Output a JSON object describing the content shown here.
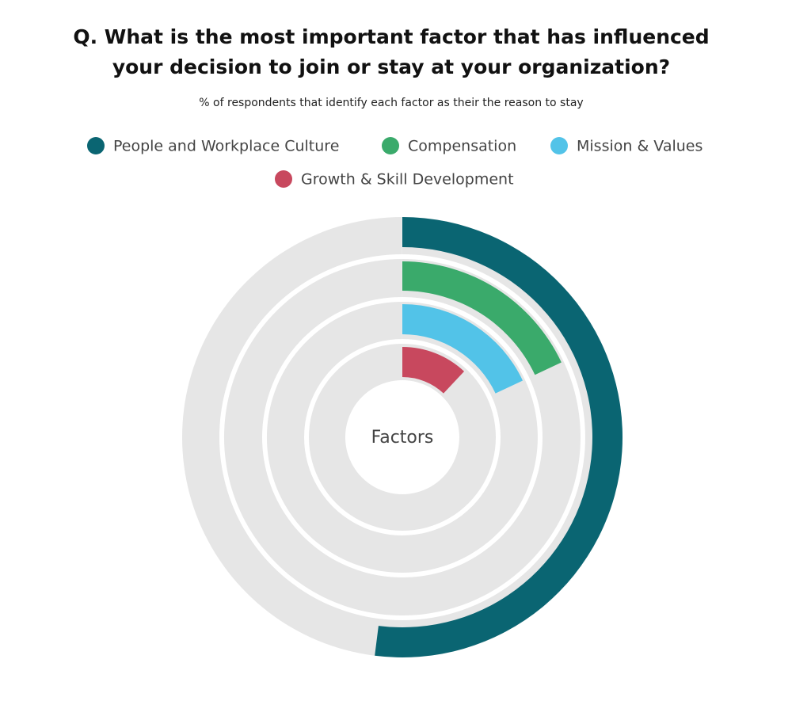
{
  "chart_data": {
    "type": "radial-bar",
    "title": [
      "Q. What is the most important factor that has influenced",
      "your decision to join or stay at your organization?"
    ],
    "subtitle": "% of respondents that identify each factor  as their the reason to stay",
    "center_label": "Factors",
    "ylim": [
      0,
      100
    ],
    "track_color": "#e6e6e6",
    "series": [
      {
        "name": "People and Workplace Culture",
        "color": "#0a6572",
        "values": [
          52
        ]
      },
      {
        "name": "Compensation",
        "color": "#3aaa6b",
        "values": [
          18
        ]
      },
      {
        "name": "Mission & Values",
        "color": "#52c3e8",
        "values": [
          18
        ]
      },
      {
        "name": "Growth & Skill Development",
        "color": "#c8485e",
        "values": [
          12
        ]
      }
    ]
  }
}
